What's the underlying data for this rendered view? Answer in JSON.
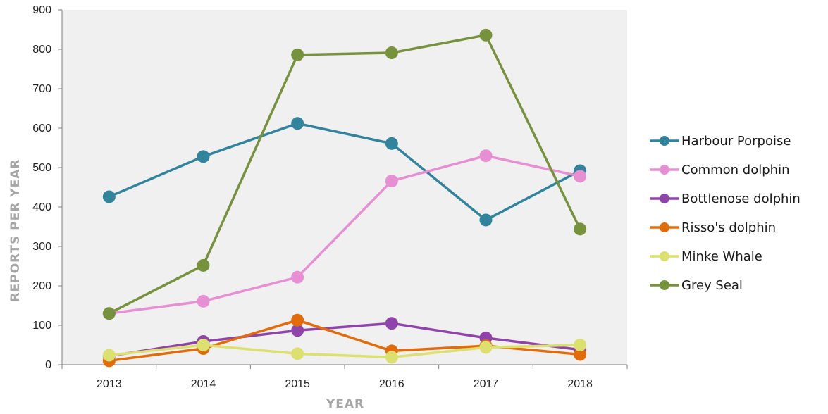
{
  "chart_data": {
    "type": "line",
    "title": "",
    "xlabel": "YEAR",
    "ylabel": "REPORTS PER YEAR",
    "categories": [
      "2013",
      "2014",
      "2015",
      "2016",
      "2017",
      "2018"
    ],
    "ylim": [
      0,
      900
    ],
    "yticks": [
      "0",
      "100",
      "200",
      "300",
      "400",
      "500",
      "600",
      "700",
      "800",
      "900"
    ],
    "grid": false,
    "plot_background": "#f0f0f0",
    "legend_position": "right",
    "series": [
      {
        "name": "Harbour Porpoise",
        "color": "#31849b",
        "values": [
          426,
          528,
          612,
          561,
          367,
          492
        ]
      },
      {
        "name": "Common dolphin",
        "color": "#e78fd3",
        "values": [
          130,
          161,
          222,
          466,
          530,
          478
        ]
      },
      {
        "name": "Bottlenose dolphin",
        "color": "#8e44a8",
        "values": [
          22,
          59,
          87,
          105,
          68,
          38
        ]
      },
      {
        "name": "Risso's dolphin",
        "color": "#e36c0a",
        "values": [
          10,
          41,
          113,
          35,
          48,
          26
        ]
      },
      {
        "name": "Minke Whale",
        "color": "#dce06e",
        "values": [
          24,
          50,
          28,
          19,
          44,
          50
        ]
      },
      {
        "name": "Grey Seal",
        "color": "#76923c",
        "values": [
          130,
          252,
          786,
          791,
          836,
          344
        ]
      }
    ]
  }
}
